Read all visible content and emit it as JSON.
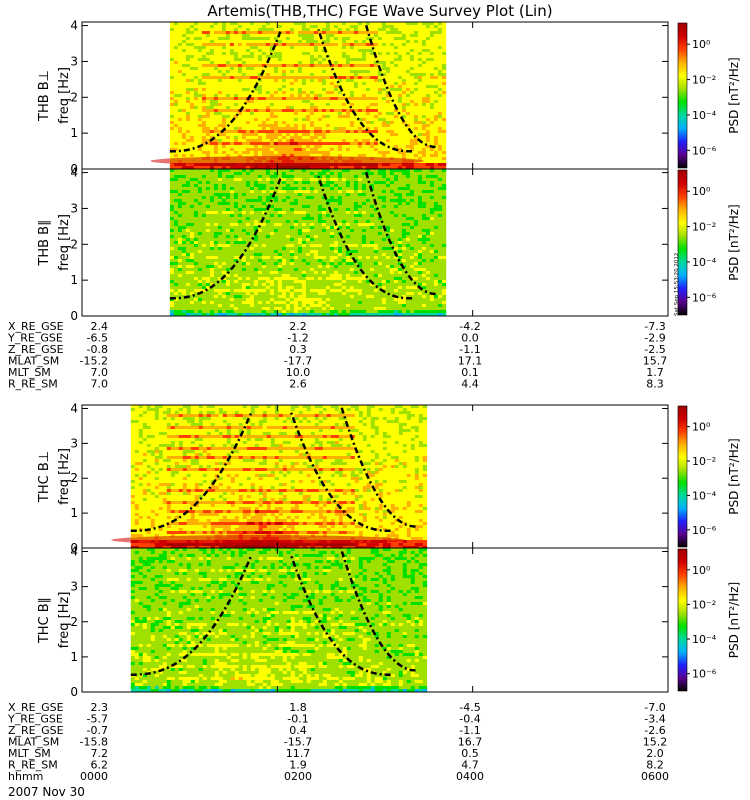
{
  "title": "Artemis(THB,THC) FGE Wave Survey Plot (Lin)",
  "colorbar": {
    "label": "PSD [nT²/Hz]",
    "tick_labels": [
      "10⁰",
      "10⁻²",
      "10⁻⁴",
      "10⁻⁶"
    ],
    "tick_log_values": [
      0,
      -2,
      -4,
      -6
    ],
    "log_range": [
      -7,
      1.2
    ],
    "colors": [
      "#000000",
      "#5a0090",
      "#2020ff",
      "#00b0ff",
      "#00d8a0",
      "#00e000",
      "#a0e000",
      "#ffff00",
      "#ffb000",
      "#ff4000",
      "#d00000",
      "#a00000"
    ]
  },
  "side_stamp": "Sat Sep 15:53:20 2012",
  "chart_data": [
    {
      "type": "heatmap",
      "probe": "THB",
      "component": "B⊥",
      "ylabel_top": "THB B⊥",
      "ylabel": "freq [Hz]",
      "xlim_hours": [
        0,
        6
      ],
      "ylim": [
        0,
        4.1
      ],
      "yticks": [
        0,
        1,
        2,
        3,
        4
      ],
      "data_coverage_hours": [
        0.9,
        3.7
      ],
      "enhancement_center_hours": 2.1
    },
    {
      "type": "heatmap",
      "probe": "THB",
      "component": "B∥",
      "ylabel_top": "THB B∥",
      "ylabel": "freq [Hz]",
      "xlim_hours": [
        0,
        6
      ],
      "ylim": [
        0,
        4.1
      ],
      "yticks": [
        0,
        1,
        2,
        3,
        4
      ],
      "data_coverage_hours": [
        0.9,
        3.7
      ],
      "enhancement_center_hours": 2.1
    },
    {
      "type": "heatmap",
      "probe": "THC",
      "component": "B⊥",
      "ylabel_top": "THC B⊥",
      "ylabel": "freq [Hz]",
      "xlim_hours": [
        0,
        6
      ],
      "ylim": [
        0,
        4.1
      ],
      "yticks": [
        0,
        1,
        2,
        3,
        4
      ],
      "data_coverage_hours": [
        0.5,
        3.5
      ],
      "enhancement_center_hours": 1.8
    },
    {
      "type": "heatmap",
      "probe": "THC",
      "component": "B∥",
      "ylabel_top": "THC B∥",
      "ylabel": "freq [Hz]",
      "xlim_hours": [
        0,
        6
      ],
      "ylim": [
        0,
        4.1
      ],
      "yticks": [
        0,
        1,
        2,
        3,
        4
      ],
      "data_coverage_hours": [
        0.5,
        3.5
      ],
      "enhancement_center_hours": 1.8
    }
  ],
  "tables": [
    {
      "rows": [
        {
          "label": "X_RE_GSE",
          "values": [
            "2.4",
            "2.2",
            "-4.2",
            "-7.3"
          ]
        },
        {
          "label": "Y_RE_GSE",
          "values": [
            "-6.5",
            "-1.2",
            "0.0",
            "-2.9"
          ]
        },
        {
          "label": "Z_RE_GSE",
          "values": [
            "-0.8",
            "0.3",
            "-1.1",
            "-2.5"
          ]
        },
        {
          "label": "MLAT_SM",
          "values": [
            "-15.2",
            "-17.7",
            "17.1",
            "15.7"
          ]
        },
        {
          "label": "MLT_SM",
          "values": [
            "7.0",
            "10.0",
            "0.1",
            "1.7"
          ]
        },
        {
          "label": "R_RE_SM",
          "values": [
            "7.0",
            "2.6",
            "4.4",
            "8.3"
          ]
        }
      ]
    },
    {
      "rows": [
        {
          "label": "X_RE_GSE",
          "values": [
            "2.3",
            "1.8",
            "-4.5",
            "-7.0"
          ]
        },
        {
          "label": "Y_RE_GSE",
          "values": [
            "-5.7",
            "-0.1",
            "-0.4",
            "-3.4"
          ]
        },
        {
          "label": "Z_RE_GSE",
          "values": [
            "-0.7",
            "0.4",
            "-1.1",
            "-2.6"
          ]
        },
        {
          "label": "MLAT_SM",
          "values": [
            "-15.8",
            "-15.7",
            "16.7",
            "15.2"
          ]
        },
        {
          "label": "MLT_SM",
          "values": [
            "7.2",
            "11.7",
            "0.5",
            "2.0"
          ]
        },
        {
          "label": "R_RE_SM",
          "values": [
            "6.2",
            "1.9",
            "4.7",
            "8.2"
          ]
        },
        {
          "label": "hhmm",
          "values": [
            "0000",
            "0200",
            "0400",
            "0600"
          ]
        }
      ]
    }
  ],
  "date_label": "2007 Nov 30"
}
